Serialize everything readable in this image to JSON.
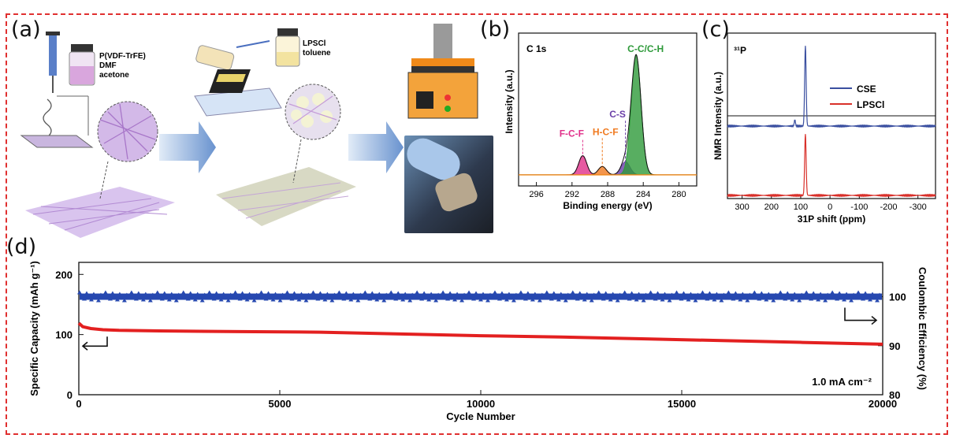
{
  "panel_labels": {
    "a": "(a)",
    "b": "(b)",
    "c": "(c)",
    "d": "(d)"
  },
  "schematic": {
    "reagent1": [
      "P(VDF-TrFE)",
      "DMF",
      "acetone"
    ],
    "reagent2": [
      "LPSCl",
      "toluene"
    ]
  },
  "chart_data": [
    {
      "id": "b",
      "type": "line",
      "title": "C 1s",
      "xlabel": "Binding energy (eV)",
      "ylabel": "Intensity (a.u.)",
      "xlim": [
        298,
        278
      ],
      "x_ticks": [
        296,
        292,
        288,
        284,
        280
      ],
      "x_reversed": true,
      "y_ticks_shown": false,
      "peaks": [
        {
          "name": "F-C-F",
          "center": 290.8,
          "height": 0.16,
          "width": 0.45,
          "color": "#e0308a"
        },
        {
          "name": "H-C-F",
          "center": 288.6,
          "height": 0.07,
          "width": 0.45,
          "color": "#f07a20"
        },
        {
          "name": "C-S",
          "center": 286.0,
          "height": 0.11,
          "width": 0.5,
          "color": "#6a3fa8"
        },
        {
          "name": "C-C/C-H",
          "center": 284.8,
          "height": 1.0,
          "width": 0.55,
          "color": "#2e9a3a"
        }
      ]
    },
    {
      "id": "c",
      "type": "line",
      "title": "³¹P",
      "xlabel": "31P shift (ppm)",
      "ylabel": "NMR Intensity (a.u.)",
      "xlim": [
        350,
        -360
      ],
      "x_ticks": [
        300,
        200,
        100,
        0,
        -100,
        -200,
        -300
      ],
      "x_reversed": true,
      "legend": "upper-right",
      "series": [
        {
          "name": "CSE",
          "color": "#3a4fa0",
          "peak_ppm": 84,
          "minor_peak_ppm": 120
        },
        {
          "name": "LPSCl",
          "color": "#d8302a",
          "peak_ppm": 84
        }
      ]
    },
    {
      "id": "d",
      "type": "scatter",
      "xlabel": "Cycle Number",
      "ylabel_left": "Specific Capacity (mAh g⁻¹)",
      "ylabel_right": "Coulombic Efficiency (%)",
      "xlim": [
        0,
        20000
      ],
      "ylim_left": [
        0,
        220
      ],
      "ylim_right": [
        80,
        107
      ],
      "x_ticks": [
        0,
        5000,
        10000,
        15000,
        20000
      ],
      "y_ticks_left": [
        0,
        100,
        200
      ],
      "y_ticks_right": [
        80,
        90,
        100
      ],
      "annotation": "1.0  mA cm⁻²",
      "series": [
        {
          "name": "Specific Capacity",
          "axis": "left",
          "color": "#e32020",
          "x": [
            0,
            100,
            300,
            600,
            1000,
            2000,
            4000,
            6000,
            8000,
            10000,
            12000,
            14000,
            16000,
            18000,
            20000
          ],
          "y": [
            119,
            113,
            110,
            108,
            107,
            106,
            105,
            104,
            101,
            98,
            96,
            93,
            90,
            87,
            84
          ]
        },
        {
          "name": "Coulombic Efficiency",
          "axis": "right",
          "color": "#2648b0",
          "marker": "triangle",
          "x": [
            0,
            20000
          ],
          "y": [
            100,
            100
          ]
        }
      ]
    }
  ]
}
